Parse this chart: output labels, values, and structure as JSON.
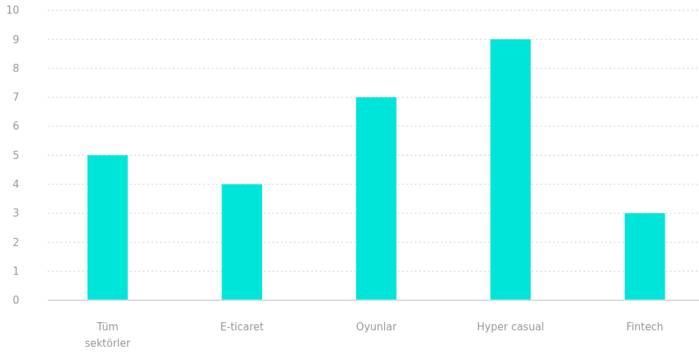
{
  "chart_data": {
    "type": "bar",
    "categories": [
      "Tüm\nsektörler",
      "E-ticaret",
      "Oyunlar",
      "Hyper casual",
      "Fintech"
    ],
    "values": [
      5,
      4,
      7,
      9,
      3
    ],
    "color": "#00e5da",
    "ylim": [
      0,
      10
    ],
    "yticks": [
      0,
      1,
      2,
      3,
      4,
      5,
      6,
      7,
      8,
      9,
      10
    ],
    "grid": "y"
  }
}
